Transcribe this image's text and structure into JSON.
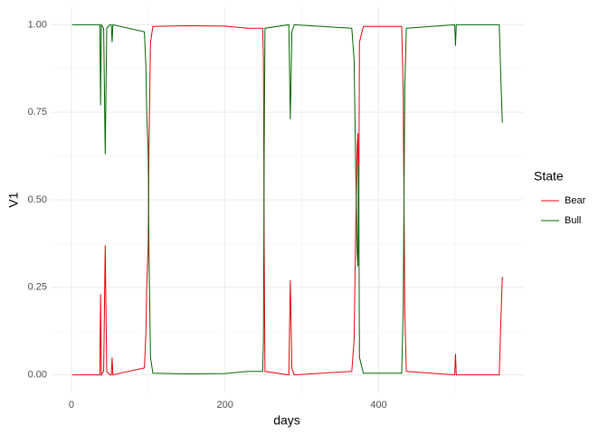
{
  "chart_data": {
    "type": "line",
    "x_label": "days",
    "y_label": "V1",
    "legend_title": "State",
    "x": [
      1,
      37,
      38,
      39,
      42,
      44,
      46,
      50,
      52,
      53,
      54,
      95,
      97,
      98,
      100,
      101,
      103,
      106,
      150,
      200,
      230,
      249,
      250,
      251,
      252,
      283,
      285,
      287,
      290,
      365,
      368,
      370,
      372,
      373,
      374,
      375,
      380,
      430,
      432,
      434,
      436,
      499,
      500,
      501,
      557,
      559,
      561
    ],
    "series": [
      {
        "name": "Bear",
        "color": "#e8000b",
        "values": [
          0,
          0,
          0.23,
          0,
          0.01,
          0.37,
          0.01,
          0,
          0,
          0.05,
          0,
          0.02,
          0.12,
          0.25,
          0.37,
          0.65,
          0.95,
          0.995,
          0.997,
          0.996,
          0.99,
          0.99,
          0.9,
          0.36,
          0.01,
          0,
          0.27,
          0.02,
          0,
          0.01,
          0.1,
          0.4,
          0.65,
          0.69,
          0.4,
          0.95,
          0.995,
          0.995,
          0.8,
          0.18,
          0.01,
          0,
          0.06,
          0,
          0,
          0.15,
          0.28
        ]
      },
      {
        "name": "Bull",
        "color": "#006400",
        "values": [
          1,
          1,
          0.77,
          1,
          0.99,
          0.63,
          0.99,
          1,
          1,
          0.95,
          1,
          0.98,
          0.88,
          0.75,
          0.63,
          0.35,
          0.05,
          0.005,
          0.003,
          0.004,
          0.01,
          0.01,
          0.1,
          0.64,
          0.99,
          1,
          0.73,
          0.98,
          1,
          0.99,
          0.9,
          0.6,
          0.35,
          0.31,
          0.6,
          0.05,
          0.005,
          0.005,
          0.2,
          0.82,
          0.99,
          1,
          0.94,
          1,
          1,
          0.85,
          0.72
        ]
      }
    ],
    "xlim": [
      -27,
      589
    ],
    "ylim": [
      -0.05,
      1.05
    ],
    "xticks": [
      0,
      200,
      400
    ],
    "yticks": [
      {
        "value": 0,
        "label": "0.00"
      },
      {
        "value": 0.25,
        "label": "0.25"
      },
      {
        "value": 0.5,
        "label": "0.50"
      },
      {
        "value": 0.75,
        "label": "0.75"
      },
      {
        "value": 1,
        "label": "1.00"
      }
    ],
    "grid": true,
    "legend_position": "right"
  }
}
